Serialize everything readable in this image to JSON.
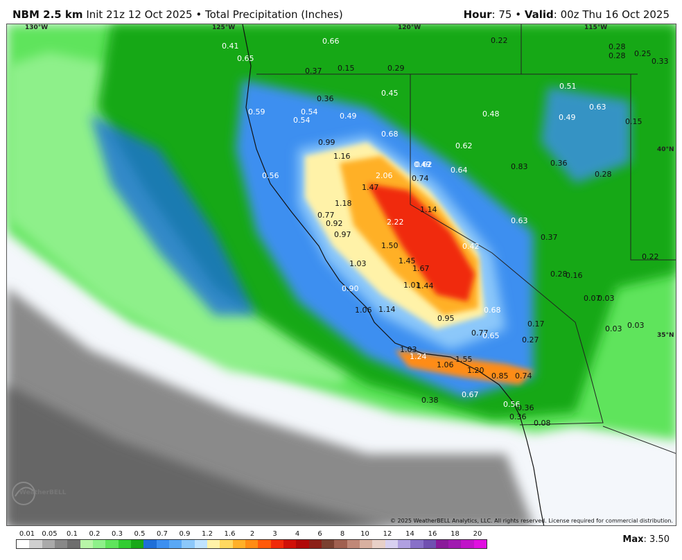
{
  "header": {
    "model": "NBM 2.5 km",
    "init": "Init 21z 12 Oct 2025",
    "separator": "•",
    "product": "Total Precipitation (Inches)",
    "hour_label": "Hour",
    "hour_value": ": 75 • ",
    "valid_label": "Valid",
    "valid_value": ": 00z Thu 16 Oct 2025"
  },
  "grid_labels": [
    "130°W",
    "125°W",
    "120°W",
    "115°W",
    "40°N",
    "35°N"
  ],
  "point_values": [
    "0.41",
    "0.65",
    "0.66",
    "0.15",
    "0.29",
    "0.22",
    "0.28",
    "0.28",
    "0.25",
    "0.33",
    "0.37",
    "0.36",
    "0.45",
    "0.51",
    "0.59",
    "0.54",
    "0.54",
    "0.49",
    "0.63",
    "0.49",
    "0.48",
    "0.15",
    "0.68",
    "0.99",
    "1.16",
    "0.62",
    "0.62",
    "0.49",
    "0.64",
    "0.83",
    "0.36",
    "0.28",
    "0.56",
    "2.06",
    "0.74",
    "1.47",
    "1.18",
    "1.14",
    "0.77",
    "0.92",
    "2.22",
    "0.63",
    "0.37",
    "0.97",
    "1.50",
    "0.42",
    "0.22",
    "1.03",
    "1.45",
    "1.67",
    "0.28",
    "0.16",
    "0.90",
    "1.01",
    "1.44",
    "0.07",
    "0.03",
    "1.06",
    "1.14",
    "0.68",
    "0.95",
    "0.17",
    "0.03",
    "0.03",
    "0.77",
    "0.65",
    "0.27",
    "1.03",
    "1.24",
    "1.06",
    "1.55",
    "1.20",
    "0.85",
    "0.74",
    "0.38",
    "0.67",
    "0.56",
    "0.36",
    "0.36",
    "0.08"
  ],
  "copyright": "© 2025 WeatherBELL Analytics, LLC. All rights reserved. License required for commercial distribution.",
  "logo_text": "WeatherBELL",
  "legend": {
    "ticks": [
      "0.01",
      "0.05",
      "0.1",
      "0.2",
      "0.3",
      "0.5",
      "0.7",
      "0.9",
      "1.2",
      "1.6",
      "2",
      "3",
      "4",
      "6",
      "8",
      "10",
      "12",
      "14",
      "16",
      "18",
      "20"
    ],
    "colors": [
      "#ffffff",
      "#cfcfcf",
      "#aaaaaa",
      "#888888",
      "#6e6e6e",
      "#b8f5a8",
      "#8ef08a",
      "#5fe45c",
      "#32cc32",
      "#18a818",
      "#1e6fd8",
      "#3c8ff0",
      "#5aa8f5",
      "#8cc8fa",
      "#bfe3ff",
      "#fff2a8",
      "#ffd860",
      "#ffb028",
      "#ff8c14",
      "#ff5a0a",
      "#f02a0a",
      "#d01008",
      "#b00808",
      "#8c2018",
      "#7a4030",
      "#a06050",
      "#c08878",
      "#d8b0a0",
      "#e8d0c8",
      "#d8d0f0",
      "#b0a0e0",
      "#8870c8",
      "#7050b0",
      "#8a1a9a",
      "#a01ab0",
      "#c014c8",
      "#e010e0"
    ]
  },
  "max_label": "Max",
  "max_value": ": 3.50"
}
